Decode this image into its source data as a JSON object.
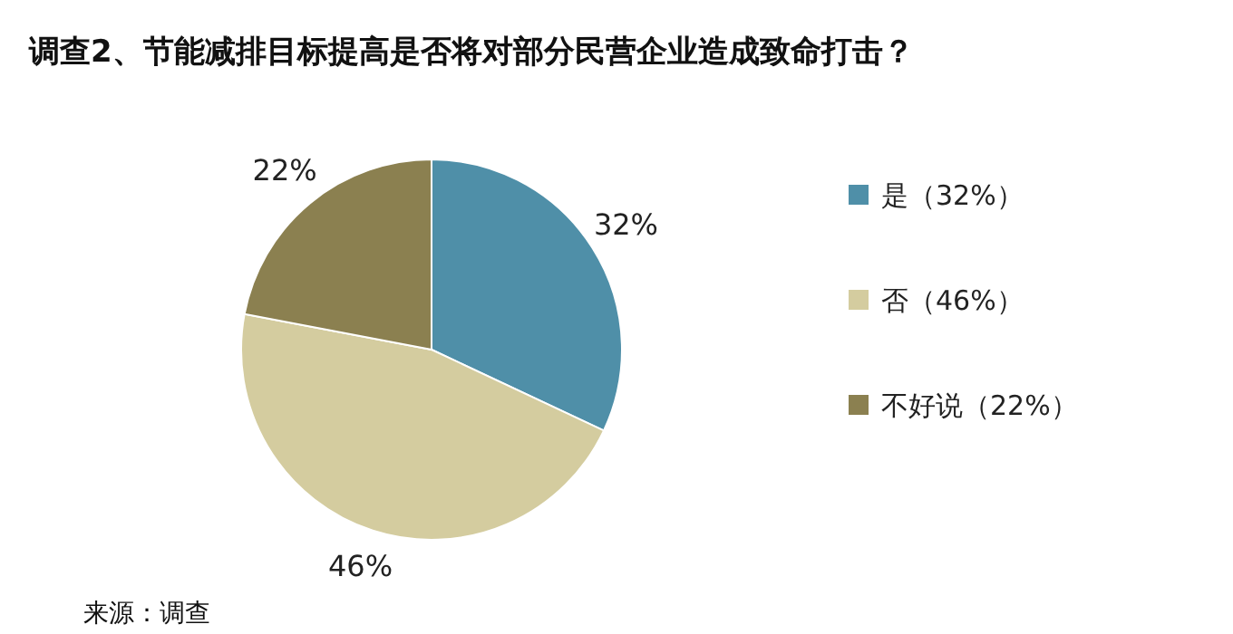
{
  "chart_data": {
    "type": "pie",
    "title": "调查2、节能减排目标提高是否将对部分民营企业造成致命打击？",
    "categories": [
      "是（32%）",
      "否（46%）",
      "不好说（22%）"
    ],
    "values": [
      32,
      46,
      22
    ],
    "colors": [
      "#4f8fa8",
      "#d4cc9f",
      "#8b8050"
    ],
    "value_labels": [
      "32%",
      "46%",
      "22%"
    ],
    "legend": "right",
    "annotations": [
      "来源：调查"
    ]
  }
}
